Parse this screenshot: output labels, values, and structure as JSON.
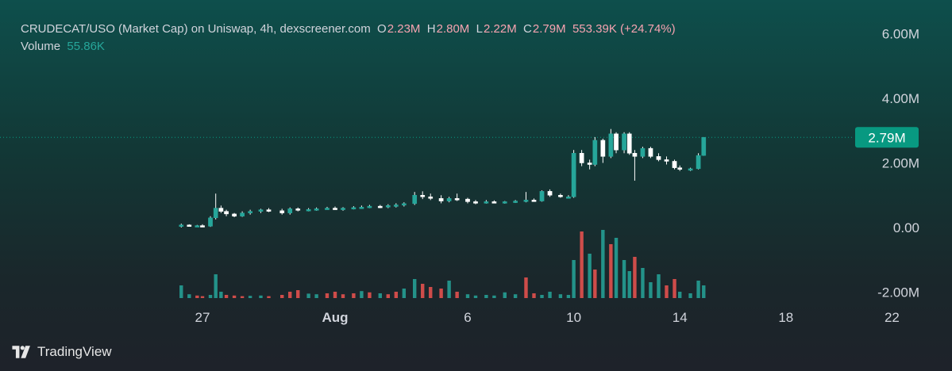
{
  "legend": {
    "title": "CRUDECAT/USO (Market Cap) on Uniswap, 4h, dexscreener.com",
    "o_label": "O",
    "o_value": "2.23M",
    "h_label": "H",
    "h_value": "2.80M",
    "l_label": "L",
    "l_value": "2.22M",
    "c_label": "C",
    "c_value": "2.79M",
    "change": "553.39K (+24.74%)",
    "volume_label": "Volume",
    "volume_value": "55.86K"
  },
  "brand": {
    "name": "TradingView"
  },
  "colors": {
    "up": "#26a69a",
    "down": "#ef5350",
    "wick": "#ffffff",
    "accent": "#089981",
    "legend_value": "#f7a3b0"
  },
  "chart_data": {
    "type": "candlestick",
    "title": "CRUDECAT/USO (Market Cap) on Uniswap, 4h, dexscreener.com",
    "x_ticks": [
      {
        "label": "27",
        "day": 27.0,
        "bold": false
      },
      {
        "label": "Aug",
        "day": 32.0,
        "bold": true
      },
      {
        "label": "6",
        "day": 37.0,
        "bold": false
      },
      {
        "label": "10",
        "day": 41.0,
        "bold": false
      },
      {
        "label": "14",
        "day": 45.0,
        "bold": false
      },
      {
        "label": "18",
        "day": 49.0,
        "bold": false
      },
      {
        "label": "22",
        "day": 53.0,
        "bold": false
      }
    ],
    "x_unit": "day of month (July 27 = 27, Aug 1 = 32)",
    "y_ticks": [
      "6.00M",
      "4.00M",
      "2.00M",
      "0.00",
      "-2.00M"
    ],
    "y_tick_values": [
      6000000,
      4000000,
      2000000,
      0,
      -2000000
    ],
    "ylim": [
      -2100000,
      6500000
    ],
    "last_price_label": "2.79M",
    "last_price": 2790000,
    "grid": false,
    "series": [
      {
        "name": "Price",
        "candles": [
          [
            26.2,
            0.05,
            0.12,
            0.0,
            0.08
          ],
          [
            26.5,
            0.08,
            0.1,
            0.03,
            0.05
          ],
          [
            26.8,
            0.05,
            0.08,
            0.03,
            0.06
          ],
          [
            27.0,
            0.06,
            0.1,
            0.02,
            0.04
          ],
          [
            27.3,
            0.04,
            0.35,
            0.02,
            0.3
          ],
          [
            27.5,
            0.3,
            1.05,
            0.25,
            0.6
          ],
          [
            27.7,
            0.6,
            0.68,
            0.45,
            0.5
          ],
          [
            27.9,
            0.5,
            0.55,
            0.35,
            0.42
          ],
          [
            28.2,
            0.42,
            0.45,
            0.32,
            0.35
          ],
          [
            28.5,
            0.35,
            0.5,
            0.33,
            0.45
          ],
          [
            28.8,
            0.45,
            0.55,
            0.4,
            0.5
          ],
          [
            29.2,
            0.5,
            0.58,
            0.45,
            0.55
          ],
          [
            29.5,
            0.55,
            0.6,
            0.48,
            0.52
          ],
          [
            30.0,
            0.52,
            0.58,
            0.4,
            0.45
          ],
          [
            30.3,
            0.45,
            0.62,
            0.4,
            0.58
          ],
          [
            30.6,
            0.58,
            0.62,
            0.5,
            0.55
          ],
          [
            31.0,
            0.55,
            0.6,
            0.5,
            0.56
          ],
          [
            31.3,
            0.56,
            0.62,
            0.52,
            0.58
          ],
          [
            31.7,
            0.58,
            0.64,
            0.55,
            0.6
          ],
          [
            32.0,
            0.6,
            0.65,
            0.55,
            0.58
          ],
          [
            32.3,
            0.58,
            0.63,
            0.52,
            0.6
          ],
          [
            32.7,
            0.6,
            0.66,
            0.56,
            0.62
          ],
          [
            33.0,
            0.62,
            0.68,
            0.58,
            0.63
          ],
          [
            33.3,
            0.63,
            0.7,
            0.6,
            0.66
          ],
          [
            33.7,
            0.66,
            0.7,
            0.6,
            0.64
          ],
          [
            34.0,
            0.64,
            0.72,
            0.6,
            0.68
          ],
          [
            34.3,
            0.68,
            0.75,
            0.62,
            0.7
          ],
          [
            34.6,
            0.7,
            0.78,
            0.65,
            0.74
          ],
          [
            35.0,
            0.74,
            1.1,
            0.7,
            1.0
          ],
          [
            35.3,
            1.0,
            1.12,
            0.88,
            0.95
          ],
          [
            35.6,
            0.95,
            1.05,
            0.85,
            0.9
          ],
          [
            36.0,
            0.9,
            1.0,
            0.75,
            0.82
          ],
          [
            36.3,
            0.82,
            0.95,
            0.78,
            0.9
          ],
          [
            36.6,
            0.9,
            1.05,
            0.82,
            0.88
          ],
          [
            37.0,
            0.88,
            0.92,
            0.75,
            0.8
          ],
          [
            37.3,
            0.8,
            0.85,
            0.72,
            0.78
          ],
          [
            37.7,
            0.78,
            0.85,
            0.74,
            0.8
          ],
          [
            38.0,
            0.8,
            0.84,
            0.75,
            0.78
          ],
          [
            38.4,
            0.78,
            0.82,
            0.74,
            0.8
          ],
          [
            38.8,
            0.8,
            0.85,
            0.76,
            0.82
          ],
          [
            39.2,
            0.82,
            1.1,
            0.78,
            0.85
          ],
          [
            39.5,
            0.85,
            0.9,
            0.8,
            0.82
          ],
          [
            39.8,
            0.82,
            1.15,
            0.8,
            1.12
          ],
          [
            40.1,
            1.12,
            1.18,
            0.95,
            1.0
          ],
          [
            40.5,
            1.0,
            1.05,
            0.92,
            0.95
          ],
          [
            40.8,
            0.95,
            1.0,
            0.9,
            0.95
          ],
          [
            41.0,
            0.95,
            2.4,
            0.92,
            2.3
          ],
          [
            41.3,
            2.3,
            2.4,
            1.9,
            2.0
          ],
          [
            41.6,
            2.0,
            2.1,
            1.8,
            1.95
          ],
          [
            41.8,
            1.95,
            2.8,
            1.9,
            2.7
          ],
          [
            42.1,
            2.7,
            2.75,
            2.0,
            2.2
          ],
          [
            42.4,
            2.2,
            3.05,
            2.15,
            2.9
          ],
          [
            42.6,
            2.9,
            2.95,
            2.3,
            2.4
          ],
          [
            42.9,
            2.4,
            2.95,
            2.3,
            2.9
          ],
          [
            43.1,
            2.9,
            2.95,
            2.25,
            2.3
          ],
          [
            43.3,
            2.3,
            2.4,
            1.45,
            2.2
          ],
          [
            43.6,
            2.2,
            2.5,
            2.15,
            2.45
          ],
          [
            43.9,
            2.45,
            2.5,
            2.15,
            2.2
          ],
          [
            44.2,
            2.2,
            2.3,
            2.05,
            2.1
          ],
          [
            44.5,
            2.1,
            2.2,
            1.95,
            2.05
          ],
          [
            44.8,
            2.05,
            2.1,
            1.8,
            1.85
          ],
          [
            45.0,
            1.85,
            1.92,
            1.75,
            1.8
          ],
          [
            45.4,
            1.8,
            1.85,
            1.75,
            1.82
          ],
          [
            45.7,
            1.82,
            2.3,
            1.8,
            2.23
          ],
          [
            45.9,
            2.23,
            2.8,
            2.22,
            2.79
          ]
        ]
      },
      {
        "name": "Volume",
        "bars": [
          [
            26.2,
            40,
            1
          ],
          [
            26.5,
            12,
            1
          ],
          [
            26.8,
            8,
            0
          ],
          [
            27.0,
            6,
            0
          ],
          [
            27.3,
            10,
            1
          ],
          [
            27.5,
            75,
            1
          ],
          [
            27.7,
            20,
            1
          ],
          [
            27.9,
            10,
            0
          ],
          [
            28.2,
            8,
            0
          ],
          [
            28.5,
            6,
            0
          ],
          [
            28.8,
            7,
            1
          ],
          [
            29.2,
            8,
            1
          ],
          [
            29.5,
            6,
            0
          ],
          [
            30.0,
            10,
            0
          ],
          [
            30.3,
            20,
            0
          ],
          [
            30.6,
            25,
            0
          ],
          [
            31.0,
            14,
            1
          ],
          [
            31.3,
            12,
            1
          ],
          [
            31.7,
            15,
            0
          ],
          [
            32.0,
            20,
            0
          ],
          [
            32.3,
            12,
            0
          ],
          [
            32.7,
            15,
            0
          ],
          [
            33.0,
            22,
            1
          ],
          [
            33.3,
            18,
            0
          ],
          [
            33.7,
            15,
            1
          ],
          [
            34.0,
            12,
            0
          ],
          [
            34.3,
            20,
            0
          ],
          [
            34.6,
            30,
            1
          ],
          [
            35.0,
            60,
            1
          ],
          [
            35.3,
            45,
            0
          ],
          [
            35.6,
            35,
            0
          ],
          [
            36.0,
            30,
            0
          ],
          [
            36.3,
            55,
            1
          ],
          [
            36.6,
            20,
            0
          ],
          [
            37.0,
            12,
            1
          ],
          [
            37.3,
            8,
            1
          ],
          [
            37.7,
            10,
            1
          ],
          [
            38.0,
            8,
            1
          ],
          [
            38.4,
            18,
            1
          ],
          [
            38.8,
            12,
            1
          ],
          [
            39.2,
            65,
            0
          ],
          [
            39.5,
            15,
            0
          ],
          [
            39.8,
            10,
            1
          ],
          [
            40.1,
            20,
            1
          ],
          [
            40.5,
            12,
            1
          ],
          [
            40.8,
            10,
            1
          ],
          [
            41.0,
            120,
            1
          ],
          [
            41.3,
            210,
            0
          ],
          [
            41.6,
            140,
            1
          ],
          [
            41.8,
            90,
            0
          ],
          [
            42.1,
            215,
            1
          ],
          [
            42.4,
            170,
            0
          ],
          [
            42.6,
            190,
            1
          ],
          [
            42.9,
            120,
            1
          ],
          [
            43.1,
            85,
            1
          ],
          [
            43.3,
            130,
            0
          ],
          [
            43.6,
            95,
            1
          ],
          [
            43.9,
            50,
            1
          ],
          [
            44.2,
            75,
            1
          ],
          [
            44.5,
            40,
            0
          ],
          [
            44.8,
            60,
            0
          ],
          [
            45.0,
            20,
            1
          ],
          [
            45.4,
            15,
            1
          ],
          [
            45.7,
            55,
            1
          ],
          [
            45.9,
            40,
            1
          ]
        ]
      }
    ]
  }
}
